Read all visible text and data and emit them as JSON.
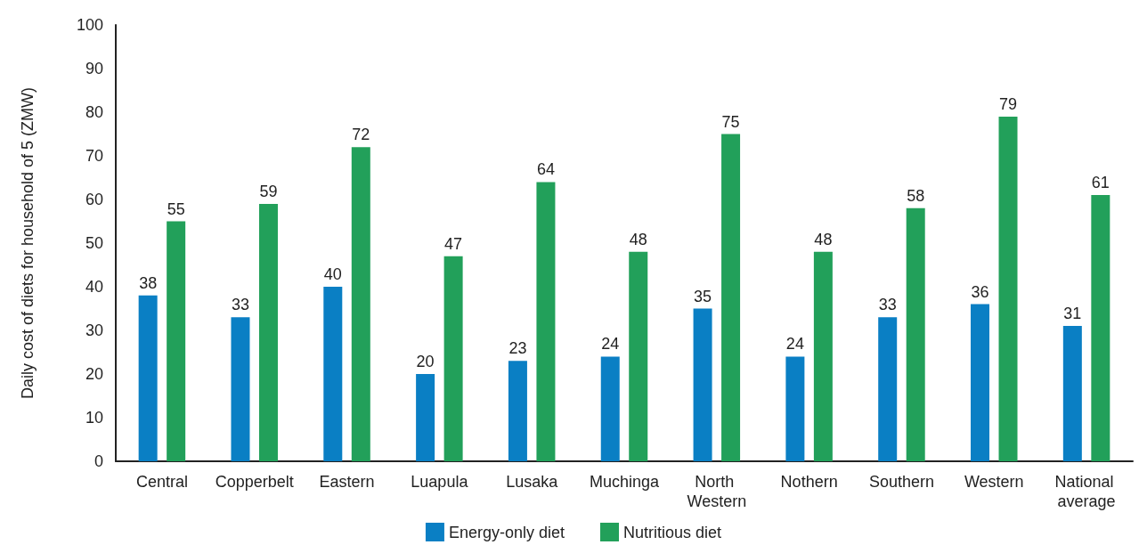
{
  "chart_data": {
    "type": "bar",
    "ylabel": "Daily cost of diets for household of 5 (ZMW)",
    "categories": [
      "Central",
      "Copperbelt",
      "Eastern",
      "Luapula",
      "Lusaka",
      "Muchinga",
      "North Western",
      "Nothern",
      "Southern",
      "Western",
      "National average"
    ],
    "series": [
      {
        "name": "Energy-only diet",
        "color": "#0a7fc4",
        "values": [
          38,
          33,
          40,
          20,
          23,
          24,
          35,
          24,
          33,
          36,
          31
        ]
      },
      {
        "name": "Nutritious diet",
        "color": "#22a05a",
        "values": [
          55,
          59,
          72,
          47,
          64,
          48,
          75,
          48,
          58,
          79,
          61
        ]
      }
    ],
    "ylim": [
      0,
      100
    ],
    "yticks": [
      0,
      10,
      20,
      30,
      40,
      50,
      60,
      70,
      80,
      90,
      100
    ],
    "grid": false,
    "legend": "bottom",
    "data_labels": true
  }
}
